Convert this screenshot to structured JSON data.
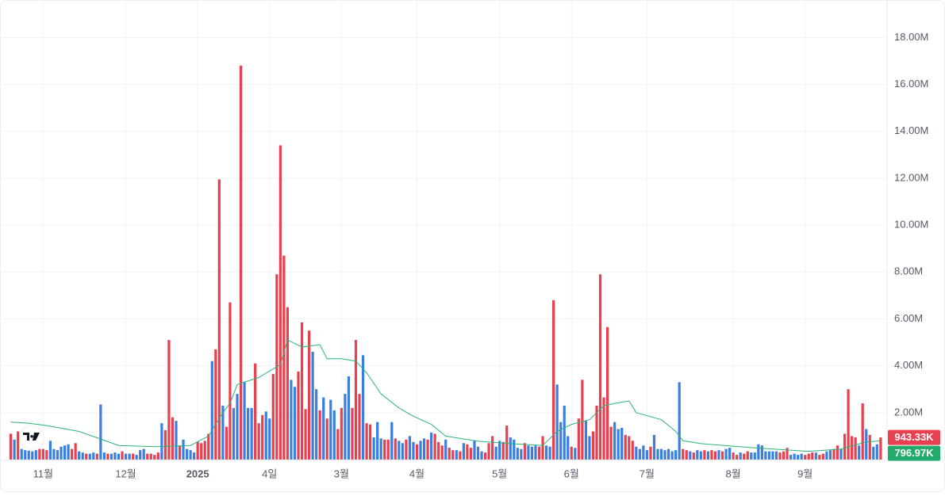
{
  "chart_data": {
    "type": "bar",
    "up_color": "#e8404e",
    "down_color": "#3a7fe0",
    "ylim": [
      0,
      19600000.0
    ],
    "yticks": [
      {
        "value": 2000000.0,
        "label": "2.00M"
      },
      {
        "value": 4000000.0,
        "label": "4.00M"
      },
      {
        "value": 6000000.0,
        "label": "6.00M"
      },
      {
        "value": 8000000.0,
        "label": "8.00M"
      },
      {
        "value": 10000000.0,
        "label": "10.00M"
      },
      {
        "value": 12000000.0,
        "label": "12.00M"
      },
      {
        "value": 14000000.0,
        "label": "14.00M"
      },
      {
        "value": 16000000.0,
        "label": "16.00M"
      },
      {
        "value": 18000000.0,
        "label": "18.00M"
      }
    ],
    "xticks": [
      {
        "value": 9,
        "label": "11월"
      },
      {
        "value": 32,
        "label": "12월"
      },
      {
        "value": 52,
        "label": "2025",
        "bold": true
      },
      {
        "value": 72,
        "label": "4일"
      },
      {
        "value": 92,
        "label": "3월"
      },
      {
        "value": 113,
        "label": "4월"
      },
      {
        "value": 136,
        "label": "5월"
      },
      {
        "value": 156,
        "label": "6월"
      },
      {
        "value": 177,
        "label": "7월"
      },
      {
        "value": 201,
        "label": "8월"
      },
      {
        "value": 221,
        "label": "9월"
      }
    ],
    "grid": true,
    "values": [
      1100000.0,
      850000.0,
      1200000.0,
      450000.0,
      400000.0,
      380000.0,
      350000.0,
      400000.0,
      450000.0,
      450000.0,
      400000.0,
      800000.0,
      450000.0,
      400000.0,
      550000.0,
      600000.0,
      650000.0,
      450000.0,
      700000.0,
      350000.0,
      300000.0,
      250000.0,
      250000.0,
      300000.0,
      250000.0,
      2350000.0,
      300000.0,
      250000.0,
      250000.0,
      300000.0,
      250000.0,
      350000.0,
      250000.0,
      250000.0,
      250000.0,
      200000.0,
      400000.0,
      450000.0,
      250000.0,
      250000.0,
      200000.0,
      300000.0,
      1550000.0,
      1250000.0,
      5100000.0,
      1800000.0,
      1650000.0,
      600000.0,
      850000.0,
      450000.0,
      400000.0,
      300000.0,
      750000.0,
      700000.0,
      800000.0,
      1100000.0,
      4200000.0,
      4700000.0,
      11950000.0,
      2300000.0,
      1400000.0,
      6700000.0,
      2200000.0,
      2800000.0,
      16800000.0,
      3300000.0,
      2200000.0,
      2200000.0,
      4100000.0,
      1550000.0,
      1900000.0,
      2050000.0,
      1750000.0,
      3650000.0,
      7900000.0,
      13400000.0,
      8700000.0,
      6500000.0,
      3400000.0,
      3100000.0,
      3750000.0,
      5850000.0,
      2150000.0,
      5500000.0,
      4600000.0,
      3000000.0,
      2100000.0,
      2650000.0,
      1750000.0,
      2550000.0,
      2100000.0,
      1300000.0,
      2200000.0,
      2800000.0,
      3550000.0,
      2200000.0,
      5100000.0,
      2800000.0,
      4450000.0,
      1550000.0,
      1500000.0,
      950000.0,
      1600000.0,
      900000.0,
      850000.0,
      850000.0,
      1600000.0,
      900000.0,
      800000.0,
      700000.0,
      850000.0,
      1000000.0,
      750000.0,
      650000.0,
      800000.0,
      900000.0,
      850000.0,
      1150000.0,
      1100000.0,
      750000.0,
      600000.0,
      850000.0,
      500000.0,
      400000.0,
      400000.0,
      350000.0,
      700000.0,
      650000.0,
      500000.0,
      800000.0,
      550000.0,
      350000.0,
      300000.0,
      700000.0,
      1000000.0,
      550000.0,
      800000.0,
      750000.0,
      1450000.0,
      950000.0,
      850000.0,
      500000.0,
      450000.0,
      700000.0,
      600000.0,
      550000.0,
      600000.0,
      550000.0,
      1000000.0,
      600000.0,
      550000.0,
      6800000.0,
      3200000.0,
      1600000.0,
      2300000.0,
      1000000.0,
      550000.0,
      500000.0,
      1750000.0,
      3400000.0,
      1650000.0,
      1000000.0,
      1200000.0,
      2300000.0,
      7900000.0,
      2650000.0,
      5650000.0,
      1400000.0,
      1600000.0,
      1300000.0,
      1350000.0,
      1050000.0,
      1000000.0,
      800000.0,
      550000.0,
      450000.0,
      600000.0,
      400000.0,
      550000.0,
      1050000.0,
      450000.0,
      450000.0,
      400000.0,
      450000.0,
      350000.0,
      400000.0,
      3300000.0,
      450000.0,
      400000.0,
      350000.0,
      300000.0,
      400000.0,
      350000.0,
      400000.0,
      350000.0,
      400000.0,
      350000.0,
      400000.0,
      350000.0,
      450000.0,
      500000.0,
      300000.0,
      200000.0,
      300000.0,
      250000.0,
      350000.0,
      300000.0,
      300000.0,
      650000.0,
      600000.0,
      350000.0,
      350000.0,
      350000.0,
      350000.0,
      300000.0,
      350000.0,
      500000.0,
      200000.0,
      250000.0,
      200000.0,
      250000.0,
      200000.0,
      250000.0,
      300000.0,
      300000.0,
      200000.0,
      250000.0,
      350000.0,
      400000.0,
      450000.0,
      600000.0,
      450000.0,
      1100000.0,
      3000000.0,
      1000000.0,
      950000.0,
      600000.0,
      2400000.0,
      1300000.0,
      1050000.0,
      550000.0,
      650000.0,
      943330.0
    ],
    "up": [
      1,
      0,
      1,
      0,
      0,
      0,
      0,
      0,
      1,
      1,
      1,
      0,
      0,
      0,
      0,
      0,
      0,
      1,
      1,
      0,
      0,
      1,
      0,
      0,
      1,
      0,
      0,
      1,
      0,
      0,
      0,
      1,
      0,
      0,
      1,
      0,
      0,
      0,
      1,
      1,
      1,
      1,
      0,
      1,
      1,
      1,
      0,
      1,
      0,
      0,
      0,
      0,
      1,
      1,
      1,
      1,
      0,
      1,
      1,
      0,
      1,
      1,
      0,
      0,
      1,
      0,
      0,
      0,
      1,
      1,
      1,
      0,
      0,
      1,
      1,
      1,
      1,
      1,
      0,
      0,
      1,
      1,
      1,
      1,
      0,
      0,
      1,
      0,
      1,
      0,
      0,
      1,
      1,
      0,
      0,
      1,
      1,
      1,
      0,
      1,
      1,
      0,
      0,
      0,
      1,
      1,
      0,
      1,
      0,
      0,
      1,
      0,
      0,
      1,
      0,
      0,
      1,
      0,
      1,
      1,
      1,
      0,
      1,
      1,
      0,
      1,
      0,
      1,
      1,
      0,
      0,
      0,
      1,
      1,
      1,
      0,
      0,
      1,
      1,
      0,
      0,
      0,
      0,
      1,
      0,
      0,
      0,
      1,
      1,
      0,
      0,
      1,
      0,
      0,
      0,
      0,
      1,
      0,
      1,
      1,
      0,
      0,
      1,
      1,
      1,
      1,
      1,
      1,
      0,
      0,
      0,
      1,
      1,
      1,
      0,
      0,
      0,
      0,
      1,
      0,
      0,
      0,
      0,
      0,
      0,
      0,
      0,
      1,
      1,
      0,
      1,
      0,
      0,
      1,
      0,
      1,
      1,
      0,
      1,
      0,
      0,
      1,
      1,
      0,
      1,
      1,
      0,
      0,
      0,
      0,
      0,
      0,
      0,
      0,
      1,
      1,
      1,
      0,
      0,
      0,
      0,
      1,
      1,
      1,
      0,
      1,
      1,
      0,
      0,
      1,
      1,
      0,
      1,
      1,
      1,
      1,
      0,
      1,
      0,
      1,
      0,
      0,
      1
    ],
    "series": [
      {
        "color": "#2bb37a",
        "x": [
          0,
          5,
          10,
          19,
          30,
          40,
          50,
          55,
          59,
          61,
          63,
          69,
          75,
          77,
          81,
          86,
          88,
          92,
          96,
          99,
          103,
          108,
          112,
          117,
          121,
          130,
          139,
          148,
          152,
          156,
          161,
          165,
          170,
          172,
          174,
          181,
          185,
          187,
          192,
          207,
          222,
          231,
          238,
          242
        ],
        "values": [
          1600000.0,
          1550000.0,
          1450000.0,
          1200000.0,
          600000.0,
          550000.0,
          600000.0,
          1000000.0,
          2000000.0,
          2400000.0,
          3200000.0,
          3500000.0,
          4050000.0,
          5100000.0,
          4800000.0,
          4900000.0,
          4300000.0,
          4300000.0,
          4200000.0,
          3700000.0,
          2800000.0,
          2200000.0,
          1850000.0,
          1500000.0,
          1000000.0,
          780000.0,
          680000.0,
          600000.0,
          1200000.0,
          1500000.0,
          1700000.0,
          2300000.0,
          2450000.0,
          2500000.0,
          2000000.0,
          1700000.0,
          1200000.0,
          800000.0,
          680000.0,
          500000.0,
          350000.0,
          450000.0,
          750000.0,
          796970.0
        ]
      }
    ],
    "last_labels": [
      {
        "value": 943330.0,
        "label": "943.33K",
        "color": "#e8404e"
      },
      {
        "value": 796970.0,
        "label": "796.97K",
        "color": "#22ab6a"
      }
    ]
  }
}
